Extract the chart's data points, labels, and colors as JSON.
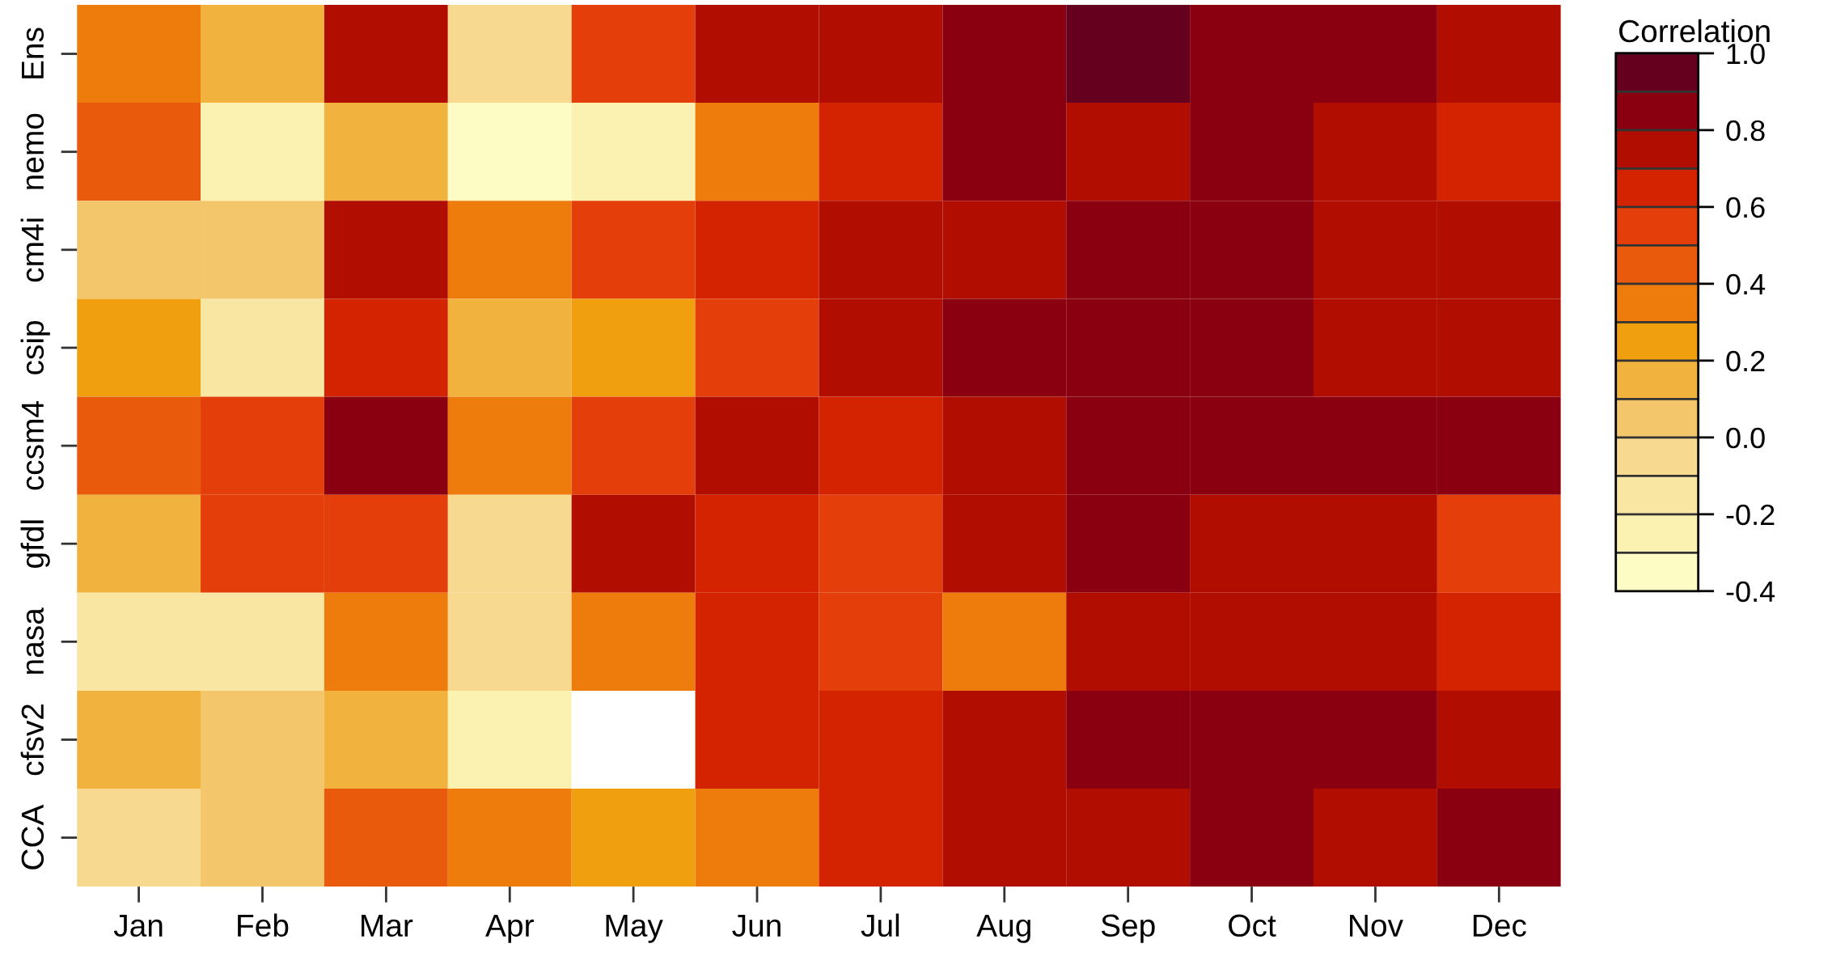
{
  "chart_data": {
    "type": "heatmap",
    "clabel": "Correlation",
    "categories": [
      "Jan",
      "Feb",
      "Mar",
      "Apr",
      "May",
      "Jun",
      "Jul",
      "Aug",
      "Sep",
      "Oct",
      "Nov",
      "Dec"
    ],
    "y_categories": [
      "Ens",
      "nemo",
      "cm4i",
      "csip",
      "ccsm4",
      "gfdl",
      "nasa",
      "cfsv2",
      "CCA"
    ],
    "cells": [
      [
        0.35,
        0.15,
        0.75,
        -0.05,
        0.55,
        0.75,
        0.75,
        0.85,
        0.95,
        0.85,
        0.85,
        0.75
      ],
      [
        0.45,
        -0.25,
        0.15,
        -0.35,
        -0.25,
        0.35,
        0.65,
        0.85,
        0.75,
        0.85,
        0.75,
        0.65
      ],
      [
        0.05,
        0.05,
        0.75,
        0.35,
        0.55,
        0.65,
        0.75,
        0.75,
        0.85,
        0.85,
        0.75,
        0.75
      ],
      [
        0.25,
        -0.15,
        0.65,
        0.15,
        0.25,
        0.55,
        0.75,
        0.85,
        0.85,
        0.85,
        0.75,
        0.75
      ],
      [
        0.45,
        0.55,
        0.85,
        0.35,
        0.55,
        0.75,
        0.65,
        0.75,
        0.85,
        0.85,
        0.85,
        0.85
      ],
      [
        0.15,
        0.55,
        0.55,
        -0.05,
        0.75,
        0.65,
        0.55,
        0.75,
        0.85,
        0.75,
        0.75,
        0.55
      ],
      [
        -0.15,
        -0.15,
        0.35,
        -0.05,
        0.35,
        0.65,
        0.55,
        0.35,
        0.75,
        0.75,
        0.75,
        0.65
      ],
      [
        0.15,
        0.05,
        0.15,
        -0.25,
        null,
        0.65,
        0.65,
        0.75,
        0.85,
        0.85,
        0.85,
        0.75
      ],
      [
        -0.05,
        0.05,
        0.45,
        0.35,
        0.25,
        0.35,
        0.65,
        0.75,
        0.75,
        0.85,
        0.75,
        0.85
      ]
    ],
    "colors": [
      "#fdfcc4",
      "#fbf1b0",
      "#f9e6a2",
      "#f7d98f",
      "#f4c66b",
      "#f2b33e",
      "#f0a00e",
      "#ee7c0c",
      "#ea5a0d",
      "#e43e0a",
      "#d42300",
      "#b10d00",
      "#8b0010",
      "#66001f"
    ],
    "clim": [
      -0.4,
      1.0
    ],
    "cticks": [
      {
        "value": -0.4,
        "label": "-0.4"
      },
      {
        "value": -0.2,
        "label": "-0.2"
      },
      {
        "value": 0.0,
        "label": "0.0"
      },
      {
        "value": 0.2,
        "label": "0.2"
      },
      {
        "value": 0.4,
        "label": "0.4"
      },
      {
        "value": 0.6,
        "label": "0.6"
      },
      {
        "value": 0.8,
        "label": "0.8"
      },
      {
        "value": 1.0,
        "label": "1.0"
      }
    ],
    "grid": false
  }
}
